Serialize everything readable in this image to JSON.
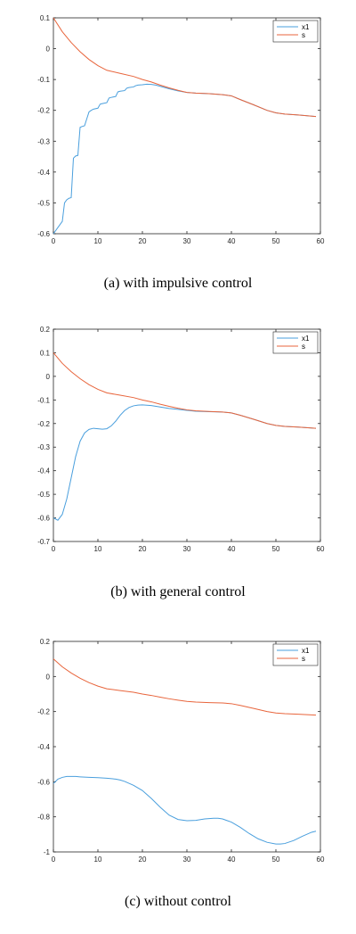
{
  "chart_data": [
    {
      "type": "line",
      "caption": "(a) with impulsive control",
      "xlim": [
        0,
        60
      ],
      "ylim": [
        -0.6,
        0.1
      ],
      "xticks": [
        0,
        10,
        20,
        30,
        40,
        50,
        60
      ],
      "yticks": [
        0.1,
        0,
        -0.1,
        -0.2,
        -0.3,
        -0.4,
        -0.5,
        -0.6
      ],
      "grid": false,
      "legend_position": "top-right",
      "series": [
        {
          "name": "x1",
          "color": "#4a9fdd",
          "x": [
            0,
            0.5,
            1,
            2,
            2.5,
            3,
            3.5,
            4,
            4.5,
            5,
            5.5,
            6,
            6.5,
            7,
            8,
            8.5,
            9,
            10,
            10.5,
            11,
            12,
            12.5,
            13,
            14,
            14.5,
            15,
            16,
            16.5,
            17,
            18,
            18.5,
            19,
            20,
            21,
            22,
            23,
            24,
            26,
            28,
            30,
            32,
            35,
            38,
            40,
            42,
            45,
            48,
            50,
            52,
            55,
            59
          ],
          "y": [
            -0.6,
            -0.59,
            -0.58,
            -0.56,
            -0.5,
            -0.49,
            -0.485,
            -0.483,
            -0.355,
            -0.348,
            -0.346,
            -0.255,
            -0.252,
            -0.25,
            -0.205,
            -0.2,
            -0.196,
            -0.193,
            -0.18,
            -0.178,
            -0.175,
            -0.16,
            -0.158,
            -0.155,
            -0.14,
            -0.138,
            -0.136,
            -0.128,
            -0.126,
            -0.124,
            -0.12,
            -0.118,
            -0.117,
            -0.115,
            -0.116,
            -0.118,
            -0.122,
            -0.13,
            -0.137,
            -0.142,
            -0.144,
            -0.146,
            -0.149,
            -0.153,
            -0.165,
            -0.182,
            -0.2,
            -0.208,
            -0.212,
            -0.215,
            -0.22
          ]
        },
        {
          "name": "s",
          "color": "#e8653c",
          "x": [
            0,
            2,
            4,
            6,
            8,
            10,
            12,
            15,
            18,
            20,
            22,
            24,
            26,
            28,
            30,
            32,
            35,
            38,
            40,
            42,
            45,
            48,
            50,
            52,
            55,
            59
          ],
          "y": [
            0.1,
            0.055,
            0.02,
            -0.01,
            -0.035,
            -0.055,
            -0.07,
            -0.08,
            -0.09,
            -0.1,
            -0.108,
            -0.118,
            -0.127,
            -0.135,
            -0.142,
            -0.144,
            -0.146,
            -0.149,
            -0.153,
            -0.165,
            -0.182,
            -0.2,
            -0.208,
            -0.212,
            -0.215,
            -0.22
          ]
        }
      ]
    },
    {
      "type": "line",
      "caption": "(b) with general control",
      "xlim": [
        0,
        60
      ],
      "ylim": [
        -0.7,
        0.2
      ],
      "xticks": [
        0,
        10,
        20,
        30,
        40,
        50,
        60
      ],
      "yticks": [
        0.2,
        0.1,
        0,
        -0.1,
        -0.2,
        -0.3,
        -0.4,
        -0.5,
        -0.6,
        -0.7
      ],
      "grid": false,
      "legend_position": "top-right",
      "series": [
        {
          "name": "x1",
          "color": "#4a9fdd",
          "x": [
            0,
            1,
            2,
            3,
            4,
            5,
            6,
            7,
            8,
            9,
            10,
            11,
            12,
            13,
            14,
            15,
            16,
            17,
            18,
            19,
            20,
            22,
            24,
            26,
            28,
            30,
            32,
            35,
            38,
            40,
            42,
            45,
            48,
            50,
            52,
            55,
            59
          ],
          "y": [
            -0.6,
            -0.61,
            -0.585,
            -0.52,
            -0.43,
            -0.34,
            -0.275,
            -0.24,
            -0.225,
            -0.22,
            -0.222,
            -0.224,
            -0.222,
            -0.21,
            -0.19,
            -0.165,
            -0.145,
            -0.132,
            -0.125,
            -0.122,
            -0.121,
            -0.124,
            -0.13,
            -0.136,
            -0.14,
            -0.144,
            -0.148,
            -0.15,
            -0.151,
            -0.155,
            -0.165,
            -0.182,
            -0.2,
            -0.208,
            -0.212,
            -0.215,
            -0.22
          ]
        },
        {
          "name": "s",
          "color": "#e8653c",
          "x": [
            0,
            2,
            4,
            6,
            8,
            10,
            12,
            15,
            18,
            20,
            22,
            24,
            26,
            28,
            30,
            32,
            35,
            38,
            40,
            42,
            45,
            48,
            50,
            52,
            55,
            59
          ],
          "y": [
            0.1,
            0.055,
            0.02,
            -0.01,
            -0.035,
            -0.055,
            -0.07,
            -0.08,
            -0.09,
            -0.1,
            -0.108,
            -0.118,
            -0.127,
            -0.135,
            -0.142,
            -0.146,
            -0.149,
            -0.151,
            -0.155,
            -0.165,
            -0.182,
            -0.2,
            -0.208,
            -0.212,
            -0.215,
            -0.22
          ]
        }
      ]
    },
    {
      "type": "line",
      "caption": "(c) without control",
      "xlim": [
        0,
        60
      ],
      "ylim": [
        -1,
        0.2
      ],
      "xticks": [
        0,
        10,
        20,
        30,
        40,
        50,
        60
      ],
      "yticks": [
        0.2,
        0,
        -0.2,
        -0.4,
        -0.6,
        -0.8,
        -1
      ],
      "grid": false,
      "legend_position": "top-right",
      "series": [
        {
          "name": "x1",
          "color": "#4a9fdd",
          "x": [
            0,
            1,
            2,
            3,
            4,
            5,
            6,
            8,
            10,
            12,
            14,
            15,
            16,
            18,
            20,
            22,
            24,
            26,
            28,
            30,
            32,
            34,
            36,
            37,
            38,
            40,
            42,
            44,
            46,
            48,
            50,
            51,
            52,
            54,
            56,
            58,
            59
          ],
          "y": [
            -0.61,
            -0.585,
            -0.575,
            -0.57,
            -0.57,
            -0.57,
            -0.572,
            -0.575,
            -0.577,
            -0.58,
            -0.585,
            -0.59,
            -0.598,
            -0.62,
            -0.65,
            -0.695,
            -0.745,
            -0.79,
            -0.815,
            -0.822,
            -0.82,
            -0.812,
            -0.808,
            -0.808,
            -0.812,
            -0.83,
            -0.86,
            -0.895,
            -0.925,
            -0.945,
            -0.955,
            -0.955,
            -0.952,
            -0.935,
            -0.91,
            -0.888,
            -0.882
          ]
        },
        {
          "name": "s",
          "color": "#e8653c",
          "x": [
            0,
            2,
            4,
            6,
            8,
            10,
            12,
            15,
            18,
            20,
            22,
            24,
            26,
            28,
            30,
            32,
            35,
            38,
            40,
            42,
            45,
            48,
            50,
            52,
            55,
            59
          ],
          "y": [
            0.1,
            0.055,
            0.02,
            -0.01,
            -0.035,
            -0.055,
            -0.07,
            -0.08,
            -0.09,
            -0.1,
            -0.108,
            -0.118,
            -0.127,
            -0.135,
            -0.142,
            -0.146,
            -0.149,
            -0.151,
            -0.155,
            -0.165,
            -0.182,
            -0.2,
            -0.208,
            -0.212,
            -0.215,
            -0.22
          ]
        }
      ]
    }
  ]
}
